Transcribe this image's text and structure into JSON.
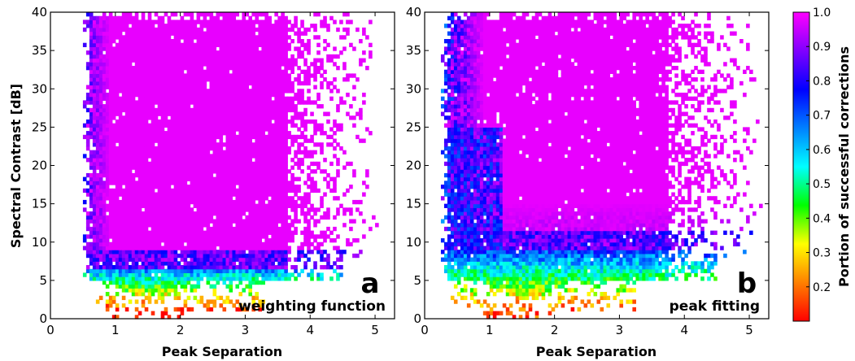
{
  "chart_data": [
    {
      "type": "heatmap",
      "panel_letter": "a",
      "caption": "weighting function",
      "xlabel": "Peak Separation",
      "ylabel": "Spectral Contrast [dB]",
      "xlim": [
        0,
        5.3
      ],
      "ylim": [
        0,
        40
      ],
      "xticks": [
        0,
        1,
        2,
        3,
        4,
        5
      ],
      "yticks": [
        0,
        5,
        10,
        15,
        20,
        25,
        30,
        35,
        40
      ],
      "description_params": {
        "x_left_edge": 0.55,
        "x_bottom_min": 0.9,
        "boundary_y": 7.2,
        "dense_x_max": 3.6,
        "sparse_x_max": 5.1,
        "low_region_min_value": 0.1
      }
    },
    {
      "type": "heatmap",
      "panel_letter": "b",
      "caption": "peak fitting",
      "xlabel": "Peak Separation",
      "ylabel": "",
      "xlim": [
        0,
        5.3
      ],
      "ylim": [
        0,
        40
      ],
      "xticks": [
        0,
        1,
        2,
        3,
        4,
        5
      ],
      "yticks": [
        0,
        5,
        10,
        15,
        20,
        25,
        30,
        35,
        40
      ],
      "description_params": {
        "x_left_edge": 0.3,
        "x_bottom_min": 0.9,
        "boundary_y": 9.5,
        "dense_x_max": 3.7,
        "sparse_x_max": 5.2,
        "low_region_min_value": 0.15
      }
    }
  ],
  "colorbar": {
    "label": "Portion of successful corrections",
    "range": [
      0.1,
      1.0
    ],
    "ticks": [
      "1.0",
      "0.9",
      "0.8",
      "0.7",
      "0.6",
      "0.5",
      "0.4",
      "0.3",
      "0.2"
    ],
    "tick_values": [
      1.0,
      0.9,
      0.8,
      0.7,
      0.6,
      0.5,
      0.4,
      0.3,
      0.2
    ],
    "colormap": [
      "#ff0000",
      "#ff8000",
      "#ffff00",
      "#00ff00",
      "#00ffff",
      "#0080ff",
      "#0000ff",
      "#8000ff",
      "#ff00ff"
    ]
  }
}
